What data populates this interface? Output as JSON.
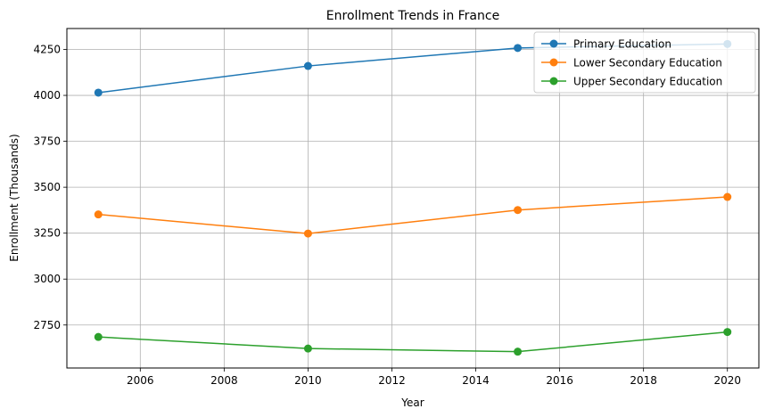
{
  "chart_data": {
    "type": "line",
    "title": "Enrollment Trends in France",
    "xlabel": "Year",
    "ylabel": "Enrollment (Thousands)",
    "x": [
      2005,
      2010,
      2015,
      2020
    ],
    "xlim": [
      2004.25,
      2020.75
    ],
    "ylim": [
      2516,
      4364
    ],
    "xticks": [
      2006,
      2008,
      2010,
      2012,
      2014,
      2016,
      2018,
      2020
    ],
    "yticks": [
      2750,
      3000,
      3250,
      3500,
      3750,
      4000,
      4250
    ],
    "grid": true,
    "legend_position": "top-right",
    "series": [
      {
        "name": "Primary Education",
        "color": "#1f77b4",
        "values": [
          4015,
          4160,
          4258,
          4280
        ]
      },
      {
        "name": "Lower Secondary Education",
        "color": "#ff7f0e",
        "values": [
          3352,
          3248,
          3376,
          3447
        ]
      },
      {
        "name": "Upper Secondary Education",
        "color": "#2ca02c",
        "values": [
          2685,
          2622,
          2605,
          2712
        ]
      }
    ]
  }
}
